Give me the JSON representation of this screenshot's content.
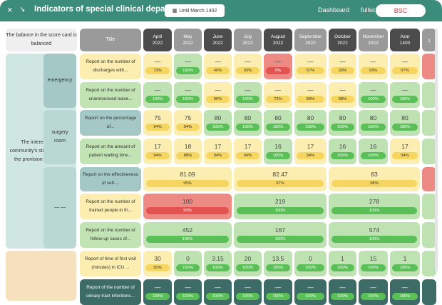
{
  "header": {
    "title": "Indicators of special clinical departments",
    "date_label": "Until March 1402",
    "dashboard": "Dashboard",
    "fullscreen": "fullscreen",
    "bsc": "BSC",
    "close_icon": "×",
    "collapse_icon": "↘",
    "calendar_icon": "▦"
  },
  "table": {
    "corner": "The balance in the score card is balanced",
    "title_col": "Title",
    "months": [
      {
        "m": "April",
        "y": "2022"
      },
      {
        "m": "May",
        "y": "2022"
      },
      {
        "m": "June",
        "y": "2022"
      },
      {
        "m": "July",
        "y": "2022"
      },
      {
        "m": "August",
        "y": "2022"
      },
      {
        "m": "September",
        "y": "2022"
      },
      {
        "m": "October",
        "y": "2022"
      },
      {
        "m": "November",
        "y": "2022"
      },
      {
        "m": "Azar",
        "y": "1400"
      },
      {
        "m": "",
        "y": "1"
      }
    ],
    "perspective": "The interest of the community's stakeholders in the provision of services",
    "groups": [
      "emergency",
      "surgery room",
      "— —"
    ],
    "rows": [
      {
        "title": "Report on the number of discharges with...",
        "cells": [
          {
            "v": "—",
            "p": "73%",
            "s": "y"
          },
          {
            "v": "—",
            "p": "100%",
            "s": "g"
          },
          {
            "v": "—",
            "p": "40%",
            "s": "y"
          },
          {
            "v": "—",
            "p": "93%",
            "s": "y"
          },
          {
            "v": "—",
            "p": "0%",
            "s": "r"
          },
          {
            "v": "—",
            "p": "67%",
            "s": "y"
          },
          {
            "v": "—",
            "p": "33%",
            "s": "y"
          },
          {
            "v": "—",
            "p": "93%",
            "s": "y"
          },
          {
            "v": "—",
            "p": "67%",
            "s": "y"
          },
          {
            "v": "",
            "p": "",
            "s": "r"
          }
        ]
      },
      {
        "title": "Report on the number of unannounced leave...",
        "cells": [
          {
            "v": "—",
            "p": "100%",
            "s": "g"
          },
          {
            "v": "—",
            "p": "100%",
            "s": "g"
          },
          {
            "v": "—",
            "p": "96%",
            "s": "y"
          },
          {
            "v": "—",
            "p": "100%",
            "s": "g"
          },
          {
            "v": "—",
            "p": "72%",
            "s": "y"
          },
          {
            "v": "—",
            "p": "80%",
            "s": "y"
          },
          {
            "v": "—",
            "p": "88%",
            "s": "y"
          },
          {
            "v": "—",
            "p": "100%",
            "s": "g"
          },
          {
            "v": "—",
            "p": "100%",
            "s": "g"
          },
          {
            "v": "",
            "p": "",
            "s": "g"
          }
        ]
      },
      {
        "title": "Report on the percentage of...",
        "cells": [
          {
            "v": "75",
            "p": "94%",
            "s": "y"
          },
          {
            "v": "75",
            "p": "94%",
            "s": "y"
          },
          {
            "v": "80",
            "p": "100%",
            "s": "g"
          },
          {
            "v": "80",
            "p": "100%",
            "s": "g"
          },
          {
            "v": "80",
            "p": "100%",
            "s": "g"
          },
          {
            "v": "80",
            "p": "100%",
            "s": "g"
          },
          {
            "v": "80",
            "p": "100%",
            "s": "g"
          },
          {
            "v": "80",
            "p": "100%",
            "s": "g"
          },
          {
            "v": "80",
            "p": "100%",
            "s": "g"
          },
          {
            "v": "",
            "p": "",
            "s": "g"
          }
        ]
      },
      {
        "title": "Report on the amount of patient waiting time...",
        "cells": [
          {
            "v": "17",
            "p": "94%",
            "s": "y"
          },
          {
            "v": "18",
            "p": "88%",
            "s": "y"
          },
          {
            "v": "17",
            "p": "94%",
            "s": "y"
          },
          {
            "v": "17",
            "p": "94%",
            "s": "y"
          },
          {
            "v": "16",
            "p": "100%",
            "s": "g"
          },
          {
            "v": "17",
            "p": "94%",
            "s": "y"
          },
          {
            "v": "16",
            "p": "100%",
            "s": "g"
          },
          {
            "v": "16",
            "p": "100%",
            "s": "g"
          },
          {
            "v": "17",
            "p": "94%",
            "s": "y"
          },
          {
            "v": "",
            "p": "",
            "s": "g"
          }
        ]
      },
      {
        "title": "Report on the effectiveness of self-...",
        "spans": [
          {
            "v": "81.09",
            "p": "95%",
            "s": "y"
          },
          {
            "v": "82.47",
            "p": "97%",
            "s": "y"
          },
          {
            "v": "83",
            "p": "98%",
            "s": "y"
          },
          {
            "v": "",
            "p": "",
            "s": "r"
          }
        ]
      },
      {
        "title": "Report on the number of trained people in th...",
        "spans": [
          {
            "v": "100",
            "p": "50%",
            "s": "r"
          },
          {
            "v": "219",
            "p": "100%",
            "s": "g"
          },
          {
            "v": "278",
            "p": "100%",
            "s": "g"
          },
          {
            "v": "",
            "p": "",
            "s": "g"
          }
        ]
      },
      {
        "title": "Report on the number of follow-up cases of...",
        "spans": [
          {
            "v": "452",
            "p": "100%",
            "s": "g"
          },
          {
            "v": "167",
            "p": "100%",
            "s": "g"
          },
          {
            "v": "574",
            "p": "100%",
            "s": "g"
          },
          {
            "v": "",
            "p": "",
            "s": "g"
          }
        ]
      },
      {
        "title": "Report of time of first visit (minutes) in ICU ...",
        "cells": [
          {
            "v": "30",
            "p": "50%",
            "s": "y"
          },
          {
            "v": "0",
            "p": "100%",
            "s": "g"
          },
          {
            "v": "3.15",
            "p": "100%",
            "s": "g"
          },
          {
            "v": "20",
            "p": "100%",
            "s": "g"
          },
          {
            "v": "13.5",
            "p": "100%",
            "s": "g"
          },
          {
            "v": "0",
            "p": "100%",
            "s": "g"
          },
          {
            "v": "1",
            "p": "100%",
            "s": "g"
          },
          {
            "v": "15",
            "p": "100%",
            "s": "g"
          },
          {
            "v": "1",
            "p": "100%",
            "s": "g"
          },
          {
            "v": "",
            "p": "",
            "s": "g"
          }
        ]
      },
      {
        "title": "Report of the number of urinary tract infections...",
        "cells": [
          {
            "v": "—",
            "p": "100%",
            "s": "d"
          },
          {
            "v": "—",
            "p": "100%",
            "s": "d"
          },
          {
            "v": "—",
            "p": "100%",
            "s": "d"
          },
          {
            "v": "—",
            "p": "100%",
            "s": "d"
          },
          {
            "v": "—",
            "p": "100%",
            "s": "d"
          },
          {
            "v": "—",
            "p": "100%",
            "s": "d"
          },
          {
            "v": "—",
            "p": "100%",
            "s": "d"
          },
          {
            "v": "—",
            "p": "100%",
            "s": "d"
          },
          {
            "v": "—",
            "p": "100%",
            "s": "d"
          },
          {
            "v": "",
            "p": "",
            "s": "d"
          }
        ]
      }
    ]
  }
}
